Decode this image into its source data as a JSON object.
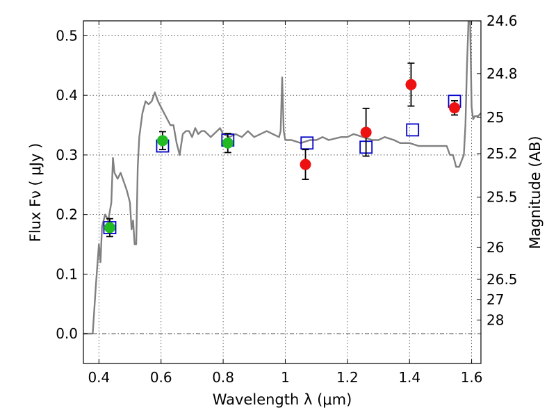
{
  "chart_data": {
    "type": "scatter",
    "title": "",
    "xlabel": "Wavelength  λ (μm)",
    "ylabel": "Flux  Fν  ( μJy )",
    "y2label": "Magnitude (AB)",
    "xlim": [
      0.35,
      1.63
    ],
    "ylim": [
      -0.05,
      0.525
    ],
    "grid": true,
    "zero_line": 0.0,
    "x_ticks": [
      0.4,
      0.6,
      0.8,
      1.0,
      1.2,
      1.4,
      1.6
    ],
    "x_tick_labels": [
      "0.4",
      "0.6",
      "0.8",
      "1",
      "1.2",
      "1.4",
      "1.6"
    ],
    "y_ticks": [
      0.0,
      0.1,
      0.2,
      0.3,
      0.4,
      0.5
    ],
    "y_tick_labels": [
      "0.0",
      "0.1",
      "0.2",
      "0.3",
      "0.4",
      "0.5"
    ],
    "y2_ticks": [
      24.6,
      24.8,
      25,
      25.2,
      25.5,
      26,
      26.5,
      27,
      28
    ],
    "y2_tick_labels": [
      "24.6",
      "24.8",
      "25",
      "25.2",
      "25.5",
      "26",
      "26.5",
      "27",
      "28"
    ],
    "colors": {
      "model": "#808080",
      "squares": "#0000cc",
      "green": "#22bb22",
      "red": "#ee1111",
      "errorbar": "#000000"
    },
    "series": [
      {
        "kind": "line",
        "points": [
          [
            0.35,
            0.0
          ],
          [
            0.38,
            0.0
          ],
          [
            0.39,
            0.08
          ],
          [
            0.4,
            0.15
          ],
          [
            0.405,
            0.12
          ],
          [
            0.41,
            0.18
          ],
          [
            0.42,
            0.2
          ],
          [
            0.43,
            0.19
          ],
          [
            0.44,
            0.22
          ],
          [
            0.445,
            0.295
          ],
          [
            0.45,
            0.27
          ],
          [
            0.46,
            0.26
          ],
          [
            0.47,
            0.27
          ],
          [
            0.48,
            0.255
          ],
          [
            0.49,
            0.24
          ],
          [
            0.5,
            0.22
          ],
          [
            0.505,
            0.175
          ],
          [
            0.51,
            0.19
          ],
          [
            0.515,
            0.15
          ],
          [
            0.52,
            0.15
          ],
          [
            0.525,
            0.28
          ],
          [
            0.53,
            0.33
          ],
          [
            0.54,
            0.37
          ],
          [
            0.55,
            0.39
          ],
          [
            0.56,
            0.385
          ],
          [
            0.57,
            0.39
          ],
          [
            0.58,
            0.405
          ],
          [
            0.59,
            0.39
          ],
          [
            0.6,
            0.38
          ],
          [
            0.61,
            0.37
          ],
          [
            0.62,
            0.36
          ],
          [
            0.63,
            0.35
          ],
          [
            0.64,
            0.35
          ],
          [
            0.65,
            0.32
          ],
          [
            0.66,
            0.3
          ],
          [
            0.67,
            0.335
          ],
          [
            0.68,
            0.34
          ],
          [
            0.69,
            0.34
          ],
          [
            0.7,
            0.33
          ],
          [
            0.71,
            0.345
          ],
          [
            0.72,
            0.335
          ],
          [
            0.73,
            0.34
          ],
          [
            0.74,
            0.34
          ],
          [
            0.75,
            0.335
          ],
          [
            0.76,
            0.33
          ],
          [
            0.77,
            0.335
          ],
          [
            0.78,
            0.34
          ],
          [
            0.79,
            0.345
          ],
          [
            0.8,
            0.335
          ],
          [
            0.82,
            0.33
          ],
          [
            0.84,
            0.335
          ],
          [
            0.86,
            0.33
          ],
          [
            0.88,
            0.34
          ],
          [
            0.9,
            0.33
          ],
          [
            0.92,
            0.335
          ],
          [
            0.94,
            0.34
          ],
          [
            0.96,
            0.335
          ],
          [
            0.98,
            0.33
          ],
          [
            0.985,
            0.34
          ],
          [
            0.99,
            0.43
          ],
          [
            0.995,
            0.34
          ],
          [
            1.0,
            0.325
          ],
          [
            1.02,
            0.325
          ],
          [
            1.05,
            0.32
          ],
          [
            1.08,
            0.325
          ],
          [
            1.1,
            0.325
          ],
          [
            1.12,
            0.33
          ],
          [
            1.14,
            0.325
          ],
          [
            1.18,
            0.33
          ],
          [
            1.2,
            0.33
          ],
          [
            1.22,
            0.335
          ],
          [
            1.25,
            0.33
          ],
          [
            1.28,
            0.325
          ],
          [
            1.3,
            0.325
          ],
          [
            1.32,
            0.33
          ],
          [
            1.35,
            0.325
          ],
          [
            1.37,
            0.32
          ],
          [
            1.4,
            0.32
          ],
          [
            1.43,
            0.315
          ],
          [
            1.46,
            0.315
          ],
          [
            1.49,
            0.315
          ],
          [
            1.52,
            0.315
          ],
          [
            1.53,
            0.3
          ],
          [
            1.54,
            0.3
          ],
          [
            1.55,
            0.28
          ],
          [
            1.56,
            0.28
          ],
          [
            1.575,
            0.3
          ],
          [
            1.58,
            0.35
          ],
          [
            1.585,
            0.45
          ],
          [
            1.59,
            0.525
          ],
          [
            1.595,
            0.525
          ],
          [
            1.6,
            0.38
          ],
          [
            1.605,
            0.36
          ],
          [
            1.61,
            0.365
          ],
          [
            1.62,
            0.365
          ],
          [
            1.63,
            0.37
          ]
        ]
      },
      {
        "kind": "open-square",
        "points": [
          [
            0.435,
            0.178
          ],
          [
            0.605,
            0.315
          ],
          [
            0.815,
            0.325
          ],
          [
            1.07,
            0.32
          ],
          [
            1.26,
            0.313
          ],
          [
            1.41,
            0.342
          ],
          [
            1.545,
            0.39
          ]
        ]
      },
      {
        "kind": "filled-circle-green",
        "points": [
          [
            0.435,
            0.178
          ],
          [
            0.605,
            0.324
          ],
          [
            0.815,
            0.32
          ]
        ],
        "yerr": [
          0.015,
          0.015,
          0.016
        ]
      },
      {
        "kind": "filled-circle-red",
        "points": [
          [
            1.065,
            0.284
          ],
          [
            1.26,
            0.338
          ],
          [
            1.405,
            0.418
          ],
          [
            1.545,
            0.379
          ]
        ],
        "yerr": [
          0.025,
          0.04,
          0.036,
          0.012
        ]
      }
    ]
  }
}
